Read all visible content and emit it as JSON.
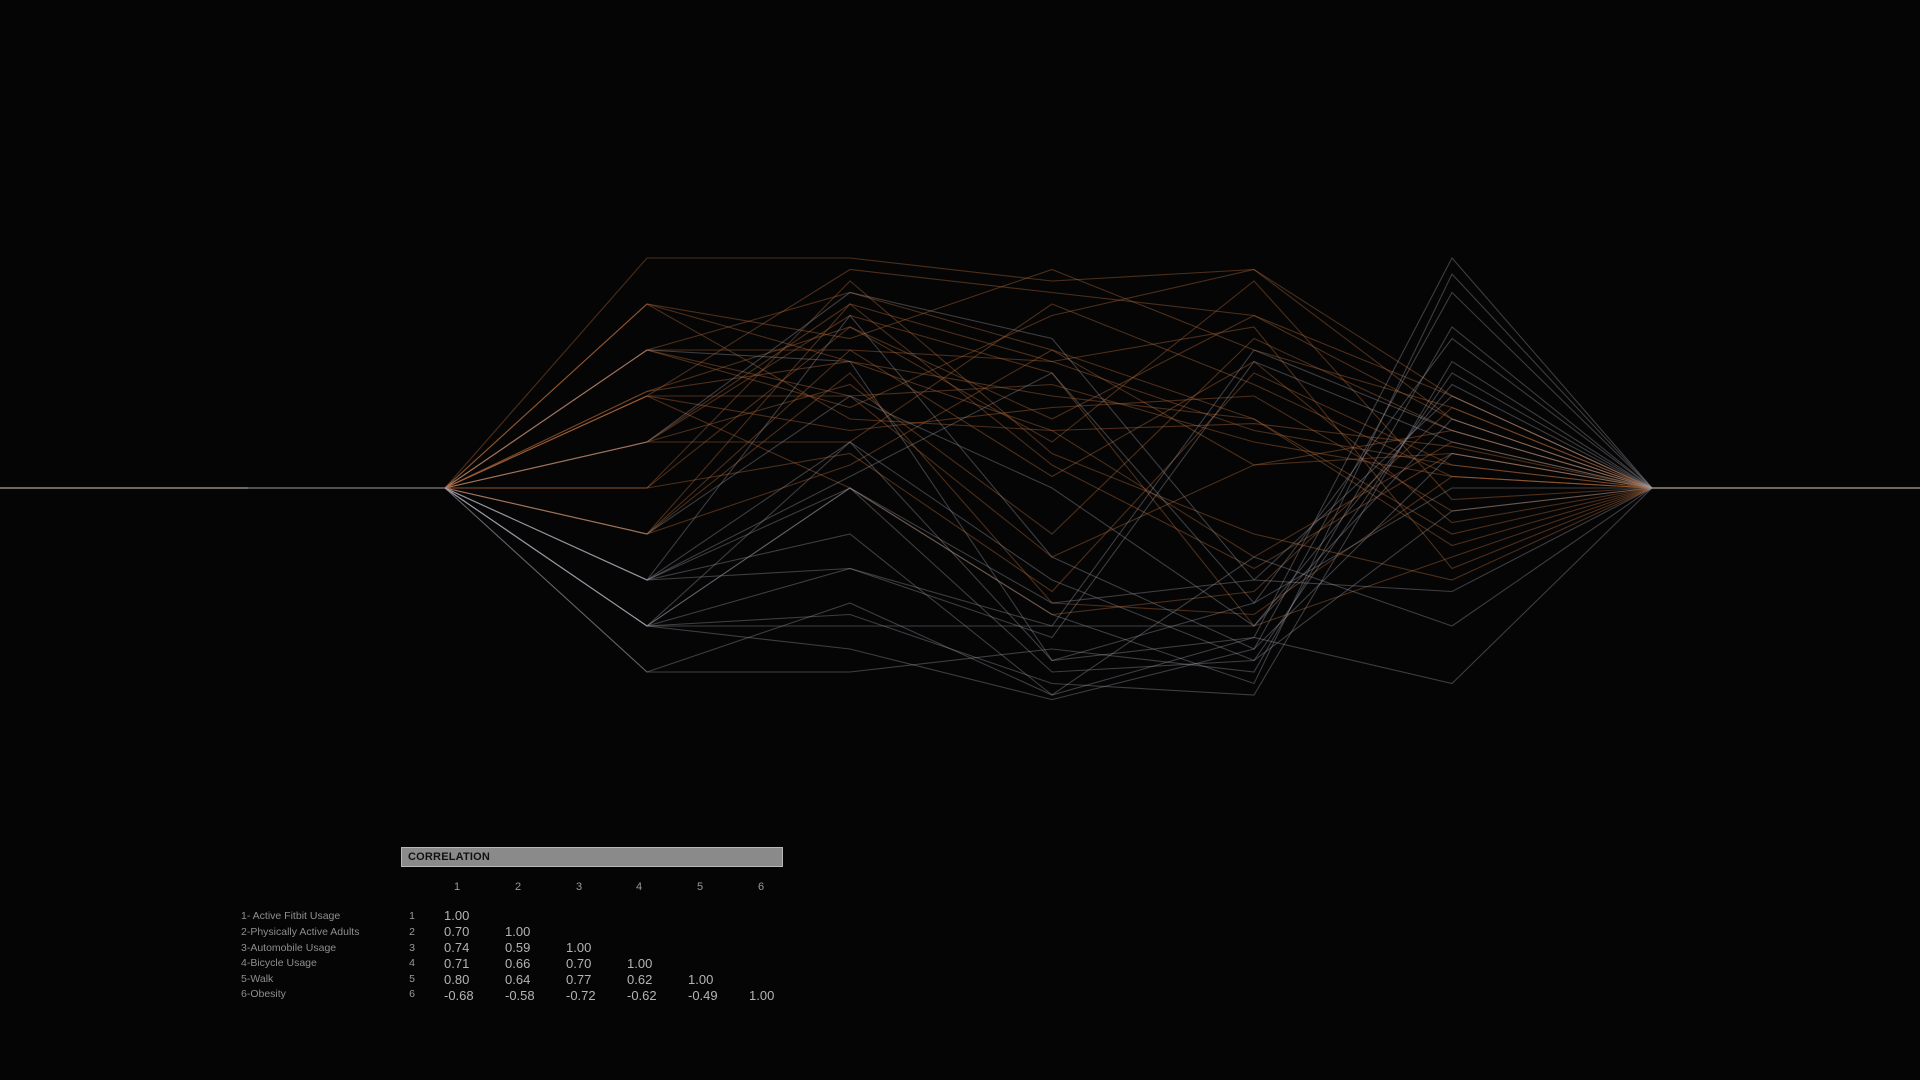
{
  "correlation": {
    "title": "CORRELATION",
    "columns": [
      "1",
      "2",
      "3",
      "4",
      "5",
      "6"
    ],
    "rows": [
      {
        "label": "1- Active Fitbit Usage",
        "num": "1",
        "values": [
          "1.00"
        ]
      },
      {
        "label": "2-Physically Active Adults",
        "num": "2",
        "values": [
          "0.70",
          "1.00"
        ]
      },
      {
        "label": "3-Automobile Usage",
        "num": "3",
        "values": [
          "0.74",
          "0.59",
          "1.00"
        ]
      },
      {
        "label": "4-Bicycle Usage",
        "num": "4",
        "values": [
          "0.71",
          "0.66",
          "0.70",
          "1.00"
        ]
      },
      {
        "label": "5-Walk",
        "num": "5",
        "values": [
          "0.80",
          "0.64",
          "0.77",
          "0.62",
          "1.00"
        ]
      },
      {
        "label": "6-Obesity",
        "num": "6",
        "values": [
          "-0.68",
          "-0.58",
          "-0.72",
          "-0.62",
          "-0.49",
          "1.00"
        ]
      }
    ]
  },
  "chart_data": {
    "type": "line",
    "description_free": true,
    "axes": [
      "1",
      "2",
      "3",
      "4",
      "5",
      "6"
    ],
    "value_range": [
      -1,
      1
    ],
    "colors": {
      "background": "#050505",
      "warm": "#b06a3a",
      "cool": "#9a9aa6",
      "baseline": "#b5a49a"
    },
    "series": [
      {
        "values": [
          0.0,
          0.42,
          0.55,
          0.25,
          0.28,
          0.18
        ],
        "tone": "warm"
      },
      {
        "values": [
          0.0,
          0.42,
          0.7,
          0.3,
          0.75,
          0.4
        ],
        "tone": "warm"
      },
      {
        "values": [
          0.0,
          0.6,
          0.4,
          0.45,
          0.2,
          0.05
        ],
        "tone": "warm"
      },
      {
        "values": [
          0.0,
          0.6,
          0.6,
          0.05,
          0.55,
          -0.15
        ],
        "tone": "warm"
      },
      {
        "values": [
          0.0,
          0.2,
          0.8,
          0.55,
          0.25,
          0.1
        ],
        "tone": "warm"
      },
      {
        "values": [
          0.0,
          0.2,
          0.45,
          -0.2,
          0.65,
          0.25
        ],
        "tone": "warm"
      },
      {
        "values": [
          0.0,
          0.4,
          0.95,
          0.85,
          0.75,
          0.3
        ],
        "tone": "warm"
      },
      {
        "values": [
          0.0,
          0.4,
          0.25,
          0.35,
          0.4,
          -0.1
        ],
        "tone": "warm"
      },
      {
        "values": [
          0.0,
          -0.2,
          0.8,
          0.1,
          -0.35,
          0.15
        ],
        "tone": "warm"
      },
      {
        "values": [
          0.0,
          -0.2,
          0.1,
          0.6,
          0.3,
          -0.25
        ],
        "tone": "warm"
      },
      {
        "values": [
          0.0,
          0.8,
          0.65,
          0.95,
          0.6,
          0.35
        ],
        "tone": "warm"
      },
      {
        "values": [
          0.0,
          0.8,
          0.3,
          0.25,
          -0.3,
          0.2
        ],
        "tone": "warm"
      },
      {
        "values": [
          0.0,
          0.0,
          0.7,
          0.2,
          0.9,
          -0.05
        ],
        "tone": "warm"
      },
      {
        "values": [
          0.0,
          0.0,
          0.15,
          -0.45,
          0.5,
          0.1
        ],
        "tone": "warm"
      },
      {
        "values": [
          0.0,
          0.6,
          0.85,
          0.6,
          0.1,
          0.25
        ],
        "tone": "warm"
      },
      {
        "values": [
          0.0,
          0.2,
          0.75,
          0.5,
          -0.6,
          -0.3
        ],
        "tone": "warm"
      },
      {
        "values": [
          0.0,
          -0.2,
          0.5,
          -0.5,
          -0.55,
          0.05
        ],
        "tone": "warm"
      },
      {
        "values": [
          0.0,
          0.4,
          0.4,
          -0.3,
          0.1,
          0.15
        ],
        "tone": "warm"
      },
      {
        "values": [
          0.0,
          0.0,
          0.9,
          0.15,
          -0.2,
          -0.4
        ],
        "tone": "warm"
      },
      {
        "values": [
          0.0,
          0.6,
          0.35,
          0.75,
          0.95,
          0.3
        ],
        "tone": "warm"
      },
      {
        "values": [
          0.0,
          0.8,
          0.55,
          0.4,
          0.3,
          -0.2
        ],
        "tone": "warm"
      },
      {
        "values": [
          0.0,
          0.2,
          0.2,
          0.8,
          0.45,
          0.05
        ],
        "tone": "warm"
      },
      {
        "values": [
          0.0,
          -0.2,
          0.6,
          0.55,
          0.7,
          -0.35
        ],
        "tone": "warm"
      },
      {
        "values": [
          0.0,
          0.4,
          0.0,
          -0.55,
          -0.45,
          0.35
        ],
        "tone": "warm"
      },
      {
        "values": [
          0.0,
          1.0,
          1.0,
          0.9,
          0.95,
          0.4
        ],
        "tone": "warm"
      },
      {
        "values": [
          0.0,
          -0.4,
          0.0,
          -0.5,
          -0.4,
          0.4
        ],
        "tone": "cool"
      },
      {
        "values": [
          0.0,
          -0.4,
          -0.35,
          -0.65,
          0.55,
          0.2
        ],
        "tone": "cool"
      },
      {
        "values": [
          0.0,
          -0.6,
          0.2,
          -0.75,
          -0.65,
          1.0
        ],
        "tone": "cool"
      },
      {
        "values": [
          0.0,
          -0.6,
          -0.55,
          -0.85,
          -0.9,
          0.55
        ],
        "tone": "cool"
      },
      {
        "values": [
          0.0,
          -0.4,
          0.75,
          -0.3,
          -0.7,
          0.85
        ],
        "tone": "cool"
      },
      {
        "values": [
          0.0,
          -0.6,
          0.0,
          -0.8,
          -0.75,
          -0.1
        ],
        "tone": "cool"
      },
      {
        "values": [
          0.0,
          -0.8,
          -0.8,
          -0.7,
          -0.8,
          0.7
        ],
        "tone": "cool"
      },
      {
        "values": [
          0.0,
          -0.4,
          0.05,
          0.5,
          -0.5,
          0.65
        ],
        "tone": "cool"
      },
      {
        "values": [
          0.0,
          -0.6,
          -0.35,
          -0.6,
          -0.6,
          0.3
        ],
        "tone": "cool"
      },
      {
        "values": [
          0.0,
          -0.4,
          -0.2,
          -0.9,
          -0.3,
          -0.6
        ],
        "tone": "cool"
      },
      {
        "values": [
          0.0,
          -0.6,
          0.0,
          -0.55,
          -0.85,
          0.93
        ],
        "tone": "cool"
      },
      {
        "values": [
          0.0,
          -0.8,
          -0.5,
          -0.9,
          -0.65,
          -0.85
        ],
        "tone": "cool"
      },
      {
        "values": [
          0.0,
          -0.6,
          -0.6,
          -0.6,
          0.6,
          0.25
        ],
        "tone": "cool"
      },
      {
        "values": [
          0.0,
          -0.4,
          0.2,
          -0.4,
          -0.75,
          0.5
        ],
        "tone": "cool"
      },
      {
        "values": [
          0.0,
          -0.6,
          -0.7,
          -0.92,
          -0.7,
          0.15
        ],
        "tone": "cool"
      },
      {
        "values": [
          0.0,
          0.6,
          0.55,
          -0.75,
          -0.5,
          0.0
        ],
        "tone": "cool"
      },
      {
        "values": [
          0.0,
          -0.2,
          0.4,
          0.0,
          -0.6,
          0.45
        ],
        "tone": "cool"
      },
      {
        "values": [
          0.0,
          0.2,
          0.85,
          0.65,
          -0.4,
          -0.45
        ],
        "tone": "cool"
      }
    ]
  }
}
